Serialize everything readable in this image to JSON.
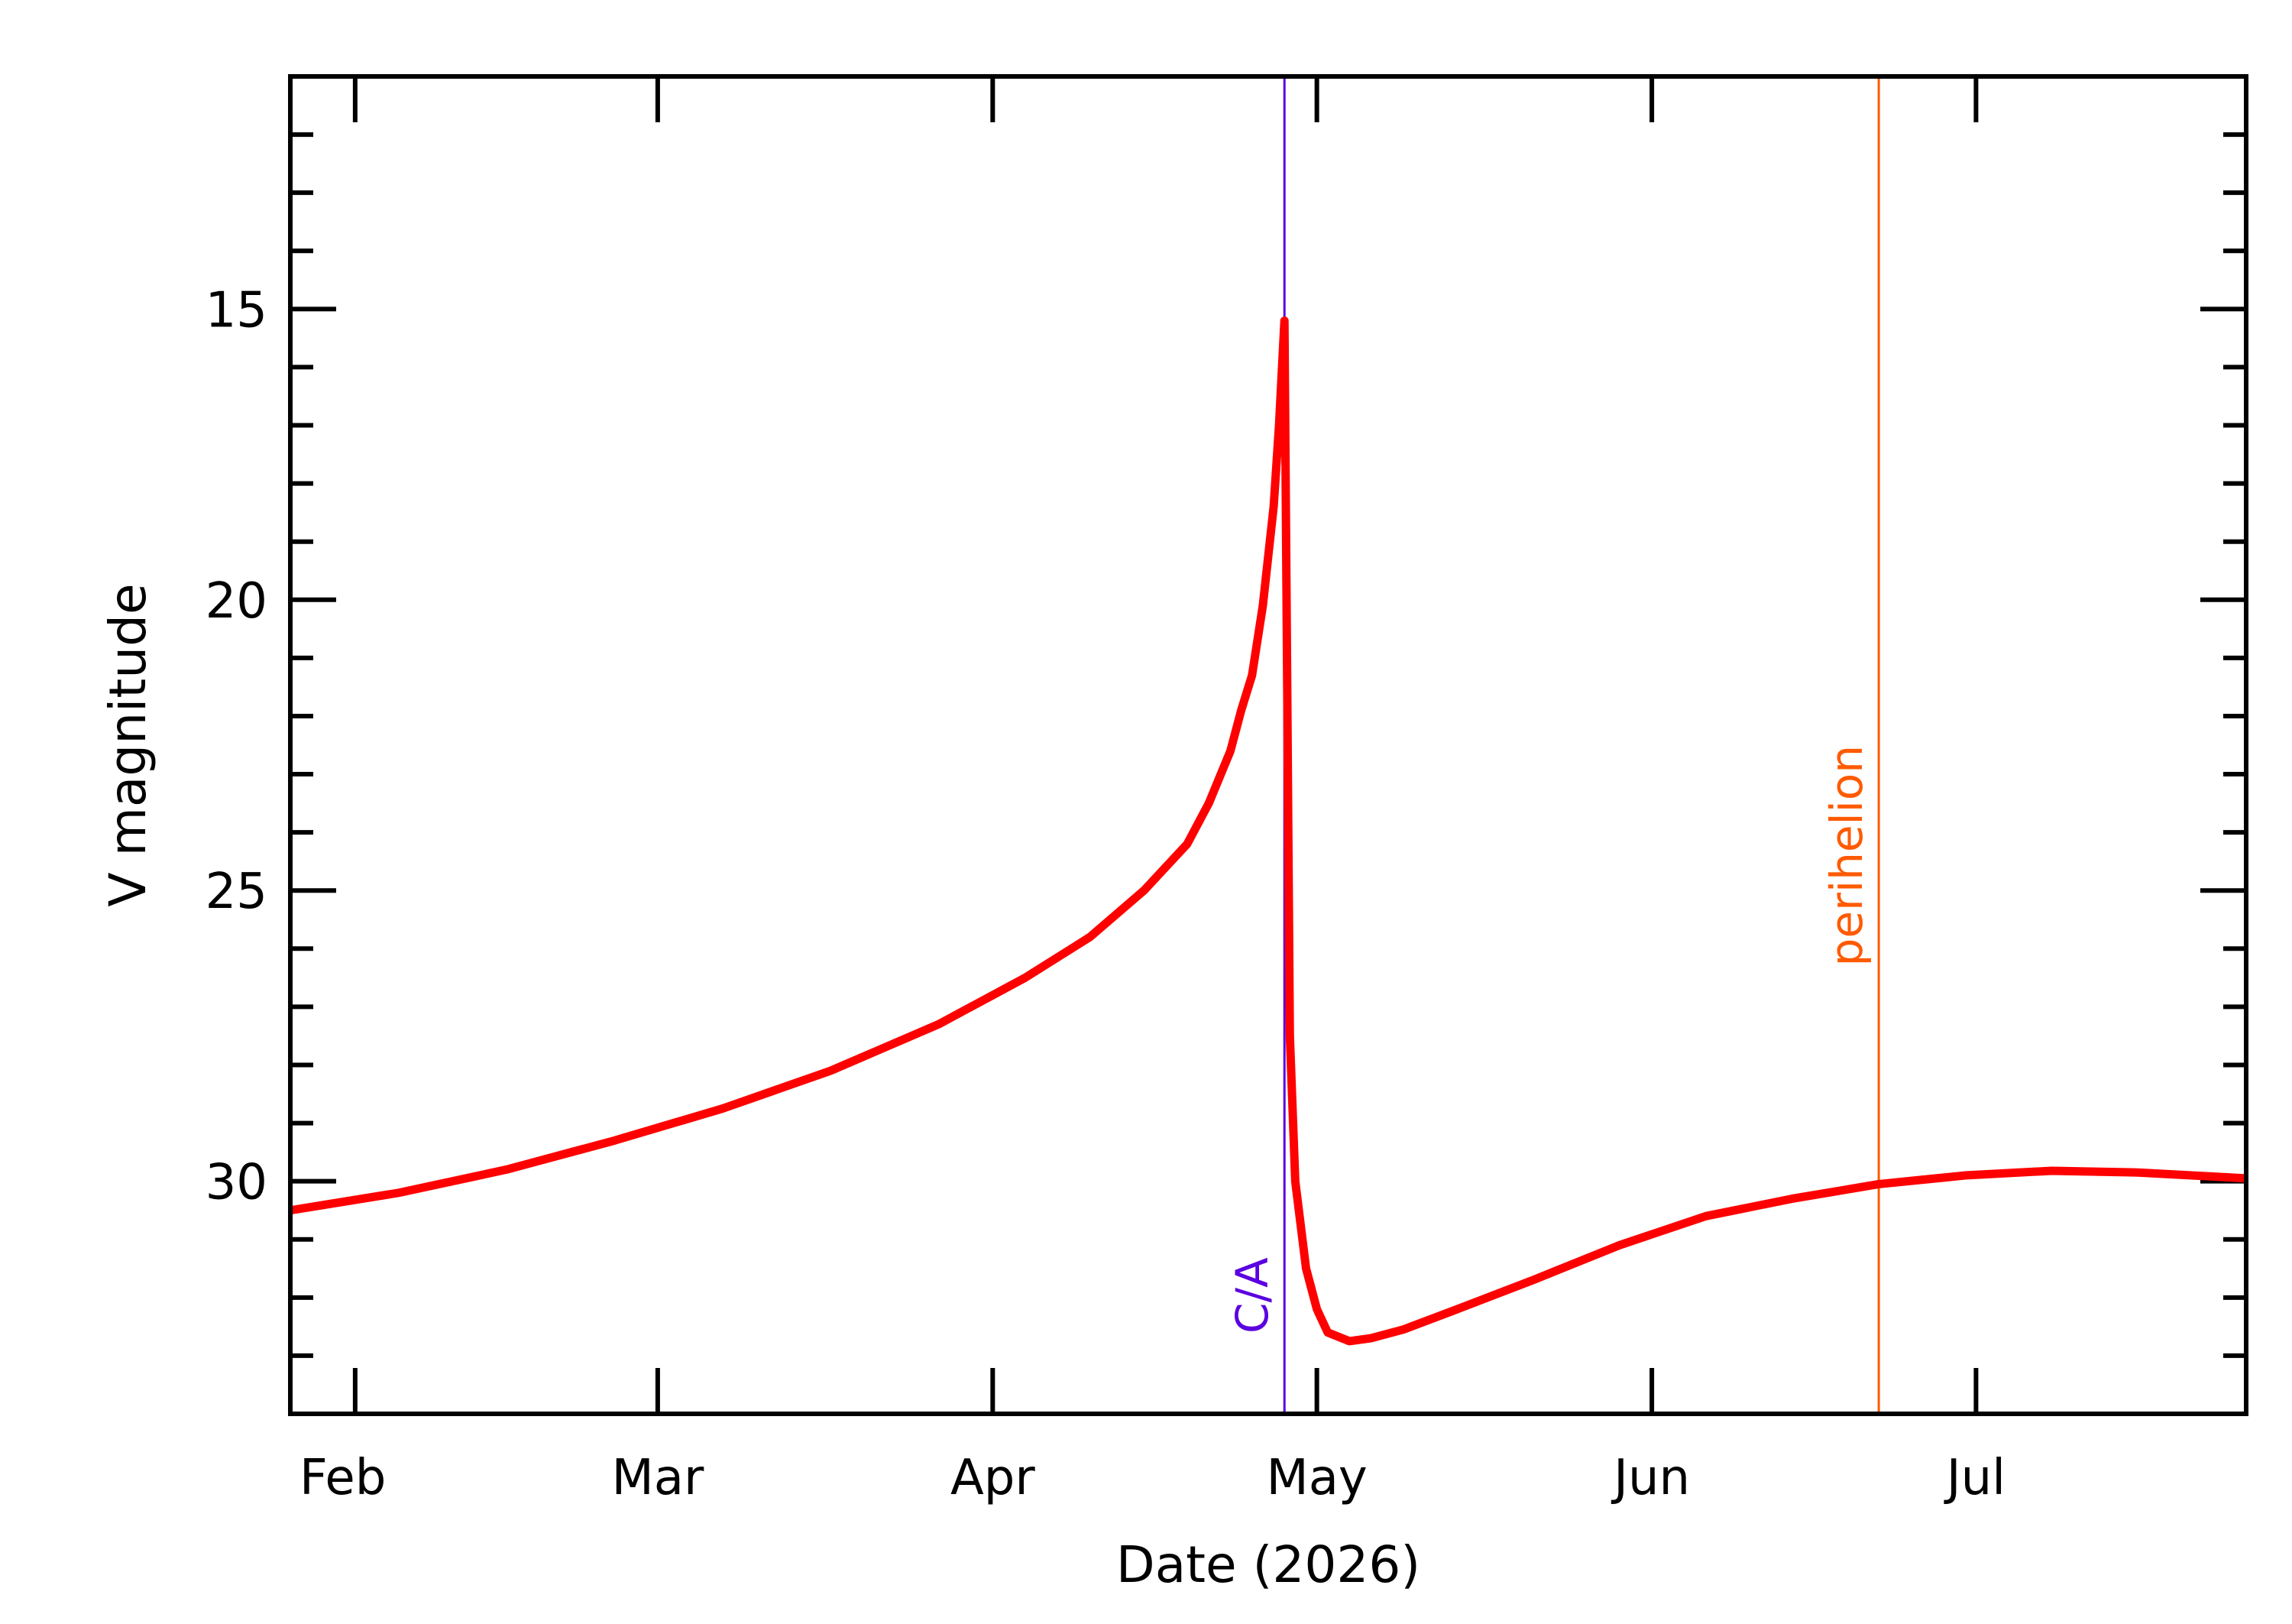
{
  "chart_data": {
    "type": "line",
    "title": "",
    "xlabel": "Date (2026)",
    "ylabel": "V magnitude",
    "x_range": [
      "2026-01-26",
      "2026-07-26"
    ],
    "ylim": [
      34,
      11
    ],
    "y_inverted": true,
    "x_major_ticks": [
      {
        "date": "2026-02-01",
        "label": "Feb"
      },
      {
        "date": "2026-03-01",
        "label": "Mar"
      },
      {
        "date": "2026-04-01",
        "label": "Apr"
      },
      {
        "date": "2026-05-01",
        "label": "May"
      },
      {
        "date": "2026-06-01",
        "label": "Jun"
      },
      {
        "date": "2026-07-01",
        "label": "Jul"
      }
    ],
    "y_major_ticks": [
      15,
      20,
      25,
      30
    ],
    "y_tick_labels": [
      "15",
      "20",
      "25",
      "30"
    ],
    "y_minor_step": 1,
    "grid": false,
    "series": [
      {
        "color": "#ff0000",
        "points": [
          {
            "x": "2026-01-26",
            "y": 30.5
          },
          {
            "x": "2026-02-05",
            "y": 30.2
          },
          {
            "x": "2026-02-15",
            "y": 29.8
          },
          {
            "x": "2026-02-25",
            "y": 29.3
          },
          {
            "x": "2026-03-07",
            "y": 28.75
          },
          {
            "x": "2026-03-17",
            "y": 28.1
          },
          {
            "x": "2026-03-27",
            "y": 27.3
          },
          {
            "x": "2026-04-04",
            "y": 26.5
          },
          {
            "x": "2026-04-10",
            "y": 25.8
          },
          {
            "x": "2026-04-15",
            "y": 25.0
          },
          {
            "x": "2026-04-19",
            "y": 24.2
          },
          {
            "x": "2026-04-21",
            "y": 23.5
          },
          {
            "x": "2026-04-23",
            "y": 22.6
          },
          {
            "x": "2026-04-24",
            "y": 21.9
          },
          {
            "x": "2026-04-25",
            "y": 21.3
          },
          {
            "x": "2026-04-26",
            "y": 20.1
          },
          {
            "x": "2026-04-27",
            "y": 18.4
          },
          {
            "x": "2026-04-27T12:00",
            "y": 17.0
          },
          {
            "x": "2026-04-28",
            "y": 15.2
          },
          {
            "x": "2026-04-28T12:00",
            "y": 27.5
          },
          {
            "x": "2026-04-29",
            "y": 30.0
          },
          {
            "x": "2026-04-30",
            "y": 31.5
          },
          {
            "x": "2026-05-01",
            "y": 32.2
          },
          {
            "x": "2026-05-02",
            "y": 32.6
          },
          {
            "x": "2026-05-04",
            "y": 32.75
          },
          {
            "x": "2026-05-06",
            "y": 32.7
          },
          {
            "x": "2026-05-09",
            "y": 32.55
          },
          {
            "x": "2026-05-14",
            "y": 32.2
          },
          {
            "x": "2026-05-21",
            "y": 31.7
          },
          {
            "x": "2026-05-29",
            "y": 31.1
          },
          {
            "x": "2026-06-06",
            "y": 30.6
          },
          {
            "x": "2026-06-14",
            "y": 30.3
          },
          {
            "x": "2026-06-22",
            "y": 30.05
          },
          {
            "x": "2026-06-30",
            "y": 29.9
          },
          {
            "x": "2026-07-08",
            "y": 29.82
          },
          {
            "x": "2026-07-16",
            "y": 29.85
          },
          {
            "x": "2026-07-26",
            "y": 29.95
          }
        ]
      }
    ],
    "vertical_markers": [
      {
        "name": "C/A",
        "label": "C/A",
        "date": "2026-04-28",
        "color": "#5b00e0"
      },
      {
        "name": "perihelion",
        "label": "perihelion",
        "date": "2026-06-22",
        "color": "#ff5a00"
      }
    ]
  }
}
